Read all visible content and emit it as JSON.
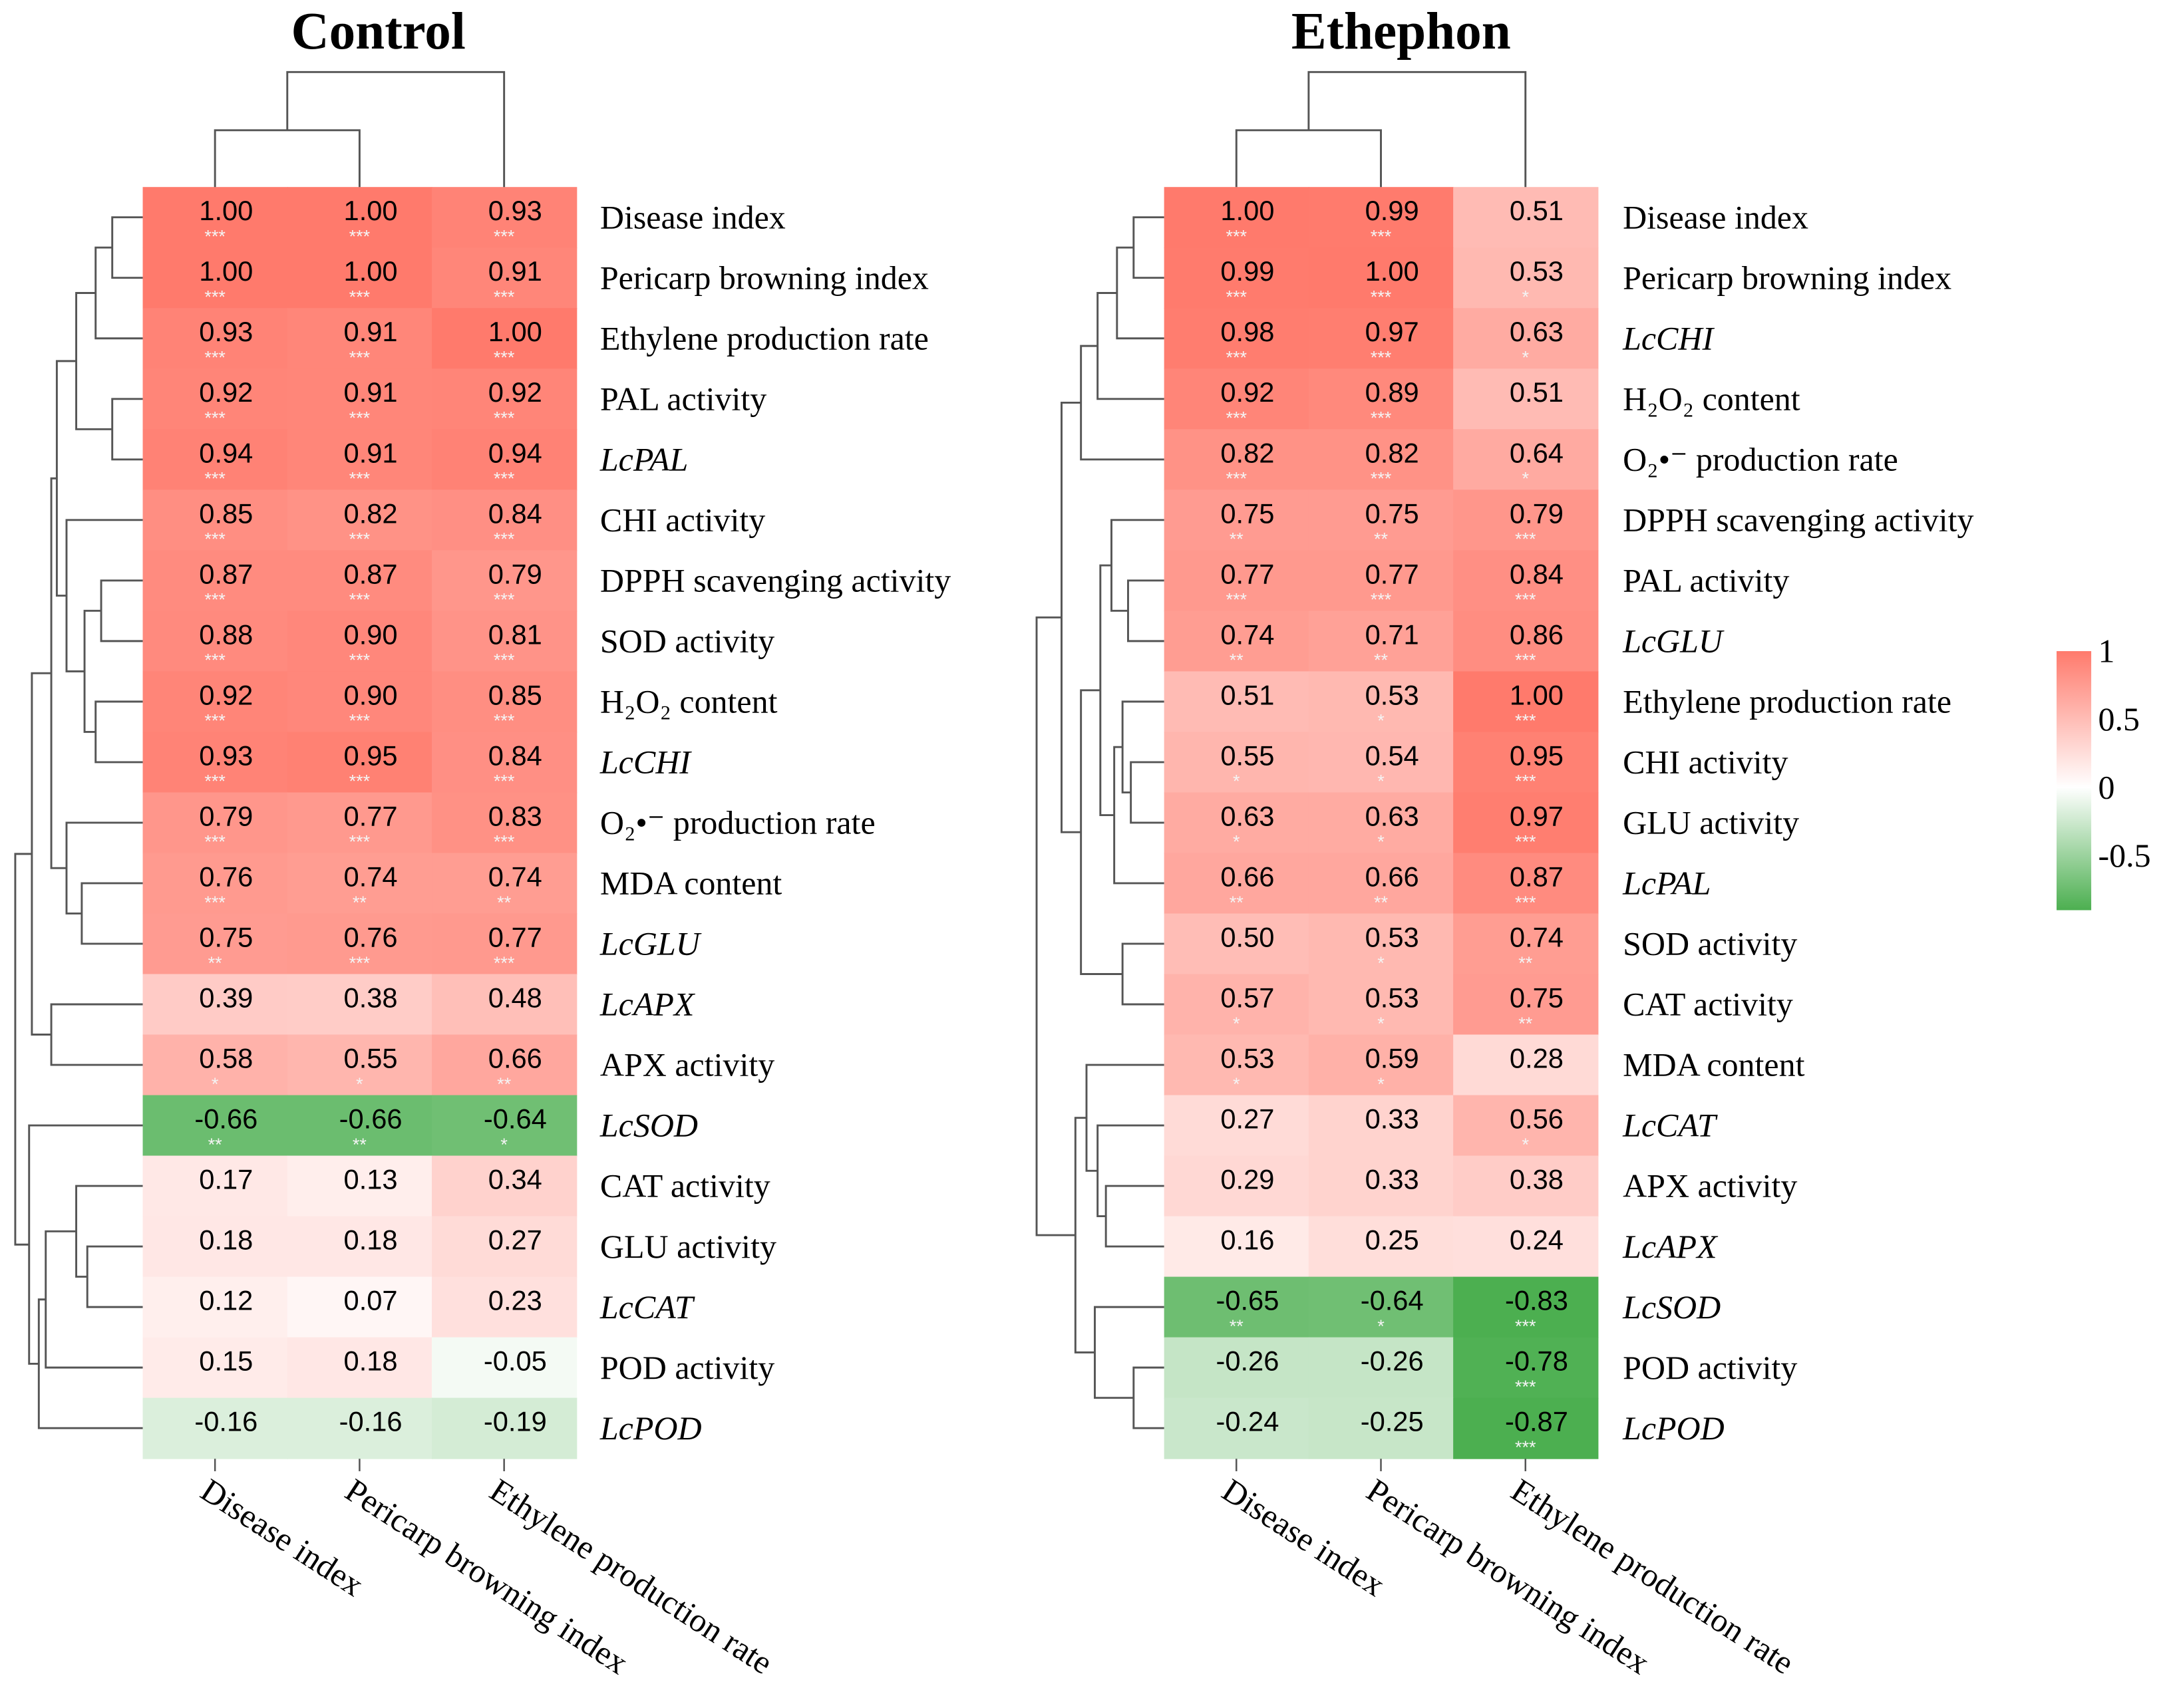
{
  "chart_data": [
    {
      "type": "heatmap",
      "title": "Control",
      "columns": [
        "Disease index",
        "Pericarp browning index",
        "Ethylene production rate"
      ],
      "rows": [
        {
          "label": "Disease index",
          "italic": false,
          "values": [
            1.0,
            1.0,
            0.93
          ],
          "sig": [
            "***",
            "***",
            "***"
          ]
        },
        {
          "label": "Pericarp browning index",
          "italic": false,
          "values": [
            1.0,
            1.0,
            0.91
          ],
          "sig": [
            "***",
            "***",
            "***"
          ]
        },
        {
          "label": "Ethylene production rate",
          "italic": false,
          "values": [
            0.93,
            0.91,
            1.0
          ],
          "sig": [
            "***",
            "***",
            "***"
          ]
        },
        {
          "label": "PAL activity",
          "italic": false,
          "values": [
            0.92,
            0.91,
            0.92
          ],
          "sig": [
            "***",
            "***",
            "***"
          ]
        },
        {
          "label": "LcPAL",
          "italic": true,
          "values": [
            0.94,
            0.91,
            0.94
          ],
          "sig": [
            "***",
            "***",
            "***"
          ]
        },
        {
          "label": "CHI activity",
          "italic": false,
          "values": [
            0.85,
            0.82,
            0.84
          ],
          "sig": [
            "***",
            "***",
            "***"
          ]
        },
        {
          "label": "DPPH scavenging activity",
          "italic": false,
          "values": [
            0.87,
            0.87,
            0.79
          ],
          "sig": [
            "***",
            "***",
            "***"
          ]
        },
        {
          "label": "SOD activity",
          "italic": false,
          "values": [
            0.88,
            0.9,
            0.81
          ],
          "sig": [
            "***",
            "***",
            "***"
          ]
        },
        {
          "label": "H₂O₂ content",
          "italic": false,
          "values": [
            0.92,
            0.9,
            0.85
          ],
          "sig": [
            "***",
            "***",
            "***"
          ]
        },
        {
          "label": "LcCHI",
          "italic": true,
          "values": [
            0.93,
            0.95,
            0.84
          ],
          "sig": [
            "***",
            "***",
            "***"
          ]
        },
        {
          "label": "O₂•⁻ production rate",
          "italic": false,
          "values": [
            0.79,
            0.77,
            0.83
          ],
          "sig": [
            "***",
            "***",
            "***"
          ]
        },
        {
          "label": "MDA content",
          "italic": false,
          "values": [
            0.76,
            0.74,
            0.74
          ],
          "sig": [
            "***",
            "**",
            "**"
          ]
        },
        {
          "label": "LcGLU",
          "italic": true,
          "values": [
            0.75,
            0.76,
            0.77
          ],
          "sig": [
            "**",
            "***",
            "***"
          ]
        },
        {
          "label": "LcAPX",
          "italic": true,
          "values": [
            0.39,
            0.38,
            0.48
          ],
          "sig": [
            "",
            "",
            ""
          ]
        },
        {
          "label": "APX activity",
          "italic": false,
          "values": [
            0.58,
            0.55,
            0.66
          ],
          "sig": [
            "*",
            "*",
            "**"
          ]
        },
        {
          "label": "LcSOD",
          "italic": true,
          "values": [
            -0.66,
            -0.66,
            -0.64
          ],
          "sig": [
            "**",
            "**",
            "*"
          ]
        },
        {
          "label": "CAT activity",
          "italic": false,
          "values": [
            0.17,
            0.13,
            0.34
          ],
          "sig": [
            "",
            "",
            ""
          ]
        },
        {
          "label": "GLU activity",
          "italic": false,
          "values": [
            0.18,
            0.18,
            0.27
          ],
          "sig": [
            "",
            "",
            ""
          ]
        },
        {
          "label": "LcCAT",
          "italic": true,
          "values": [
            0.12,
            0.07,
            0.23
          ],
          "sig": [
            "",
            "",
            ""
          ]
        },
        {
          "label": "POD activity",
          "italic": false,
          "values": [
            0.15,
            0.18,
            -0.05
          ],
          "sig": [
            "",
            "",
            ""
          ]
        },
        {
          "label": "LcPOD",
          "italic": true,
          "values": [
            -0.16,
            -0.16,
            -0.19
          ],
          "sig": [
            "",
            "",
            ""
          ]
        }
      ]
    },
    {
      "type": "heatmap",
      "title": "Ethephon",
      "columns": [
        "Disease index",
        "Pericarp browning index",
        "Ethylene production rate"
      ],
      "rows": [
        {
          "label": "Disease index",
          "italic": false,
          "values": [
            1.0,
            0.99,
            0.51
          ],
          "sig": [
            "***",
            "***",
            ""
          ]
        },
        {
          "label": "Pericarp browning index",
          "italic": false,
          "values": [
            0.99,
            1.0,
            0.53
          ],
          "sig": [
            "***",
            "***",
            "*"
          ]
        },
        {
          "label": "LcCHI",
          "italic": true,
          "values": [
            0.98,
            0.97,
            0.63
          ],
          "sig": [
            "***",
            "***",
            "*"
          ]
        },
        {
          "label": "H₂O₂ content",
          "italic": false,
          "values": [
            0.92,
            0.89,
            0.51
          ],
          "sig": [
            "***",
            "***",
            ""
          ]
        },
        {
          "label": "O₂•⁻ production rate",
          "italic": false,
          "values": [
            0.82,
            0.82,
            0.64
          ],
          "sig": [
            "***",
            "***",
            "*"
          ]
        },
        {
          "label": "DPPH scavenging activity",
          "italic": false,
          "values": [
            0.75,
            0.75,
            0.79
          ],
          "sig": [
            "**",
            "**",
            "***"
          ]
        },
        {
          "label": "PAL activity",
          "italic": false,
          "values": [
            0.77,
            0.77,
            0.84
          ],
          "sig": [
            "***",
            "***",
            "***"
          ]
        },
        {
          "label": "LcGLU",
          "italic": true,
          "values": [
            0.74,
            0.71,
            0.86
          ],
          "sig": [
            "**",
            "**",
            "***"
          ]
        },
        {
          "label": "Ethylene production rate",
          "italic": false,
          "values": [
            0.51,
            0.53,
            1.0
          ],
          "sig": [
            "",
            "*",
            "***"
          ]
        },
        {
          "label": "CHI activity",
          "italic": false,
          "values": [
            0.55,
            0.54,
            0.95
          ],
          "sig": [
            "*",
            "*",
            "***"
          ]
        },
        {
          "label": "GLU activity",
          "italic": false,
          "values": [
            0.63,
            0.63,
            0.97
          ],
          "sig": [
            "*",
            "*",
            "***"
          ]
        },
        {
          "label": "LcPAL",
          "italic": true,
          "values": [
            0.66,
            0.66,
            0.87
          ],
          "sig": [
            "**",
            "**",
            "***"
          ]
        },
        {
          "label": "SOD activity",
          "italic": false,
          "values": [
            0.5,
            0.53,
            0.74
          ],
          "sig": [
            "",
            "*",
            "**"
          ]
        },
        {
          "label": "CAT activity",
          "italic": false,
          "values": [
            0.57,
            0.53,
            0.75
          ],
          "sig": [
            "*",
            "*",
            "**"
          ]
        },
        {
          "label": "MDA content",
          "italic": false,
          "values": [
            0.53,
            0.59,
            0.28
          ],
          "sig": [
            "*",
            "*",
            ""
          ]
        },
        {
          "label": "LcCAT",
          "italic": true,
          "values": [
            0.27,
            0.33,
            0.56
          ],
          "sig": [
            "",
            "",
            "*"
          ]
        },
        {
          "label": "APX activity",
          "italic": false,
          "values": [
            0.29,
            0.33,
            0.38
          ],
          "sig": [
            "",
            "",
            ""
          ]
        },
        {
          "label": "LcAPX",
          "italic": true,
          "values": [
            0.16,
            0.25,
            0.24
          ],
          "sig": [
            "",
            "",
            ""
          ]
        },
        {
          "label": "LcSOD",
          "italic": true,
          "values": [
            -0.65,
            -0.64,
            -0.83
          ],
          "sig": [
            "**",
            "*",
            "***"
          ]
        },
        {
          "label": "POD activity",
          "italic": false,
          "values": [
            -0.26,
            -0.26,
            -0.78
          ],
          "sig": [
            "",
            "",
            "***"
          ]
        },
        {
          "label": "LcPOD",
          "italic": true,
          "values": [
            -0.24,
            -0.25,
            -0.87
          ],
          "sig": [
            "",
            "",
            "***"
          ]
        }
      ]
    }
  ],
  "legend": {
    "ticks": [
      "1",
      "0.5",
      "0",
      "-0.5"
    ],
    "tick_values": [
      1,
      0.5,
      0,
      -0.5
    ],
    "range": [
      -0.9,
      1
    ],
    "colors": {
      "high": "#FF7A6C",
      "mid": "#FFFFFF",
      "low": "#4CAF50"
    }
  }
}
